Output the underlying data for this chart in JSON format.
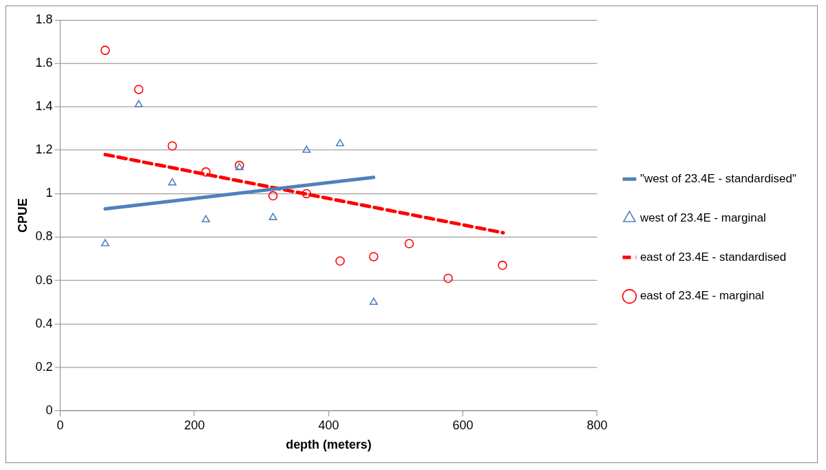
{
  "chart_data": {
    "type": "scatter",
    "xlabel": "depth (meters)",
    "ylabel": "CPUE",
    "xlim": [
      0,
      800
    ],
    "ylim": [
      0,
      1.8
    ],
    "xticks": [
      0,
      200,
      400,
      600,
      800
    ],
    "yticks": [
      0,
      0.2,
      0.4,
      0.6,
      0.8,
      1,
      1.2,
      1.4,
      1.6,
      1.8
    ],
    "grid": "y",
    "legend": "right",
    "series": [
      {
        "name": "\"west of 23.4E - standardised\"",
        "type": "line",
        "color": "#4f81bd",
        "line_style": "solid",
        "marker": "none",
        "x": [
          67,
          467
        ],
        "values": [
          0.93,
          1.075
        ]
      },
      {
        "name": "west of 23.4E - marginal",
        "type": "scatter",
        "color": "#4f81bd",
        "marker": "triangle",
        "x": [
          67,
          117,
          167,
          217,
          267,
          317,
          367,
          417,
          467
        ],
        "values": [
          0.77,
          1.41,
          1.05,
          0.88,
          1.12,
          0.89,
          1.2,
          1.23,
          0.5
        ]
      },
      {
        "name": "east of 23.4E - standardised",
        "type": "line",
        "color": "#ff0000",
        "line_style": "dashed",
        "marker": "none",
        "x": [
          67,
          660
        ],
        "values": [
          1.18,
          0.82
        ]
      },
      {
        "name": "east of 23.4E - marginal",
        "type": "scatter",
        "color": "#ff0000",
        "marker": "circle",
        "x": [
          67,
          117,
          167,
          217,
          267,
          317,
          367,
          417,
          467,
          520,
          578,
          659
        ],
        "values": [
          1.66,
          1.48,
          1.22,
          1.1,
          1.13,
          0.99,
          1,
          0.69,
          0.71,
          0.77,
          0.61,
          0.67
        ]
      }
    ]
  }
}
